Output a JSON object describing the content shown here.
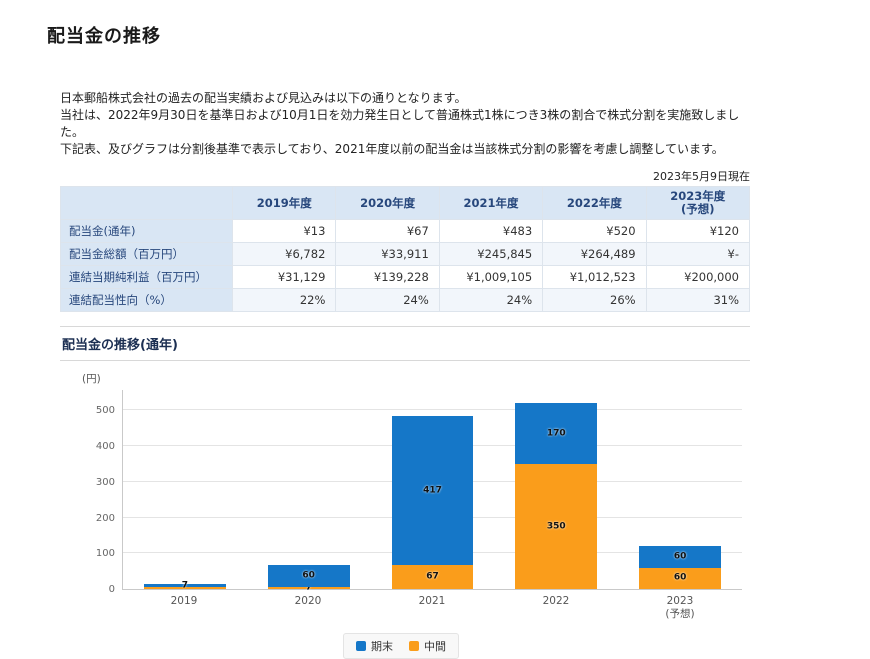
{
  "page": {
    "title": "配当金の推移",
    "intro_lines": [
      "日本郵船株式会社の過去の配当実績および見込みは以下の通りとなります。",
      "当社は、2022年9月30日を基準日および10月1日を効力発生日として普通株式1株につき3株の割合で株式分割を実施致しました。",
      "下記表、及びグラフは分割後基準で表示しており、2021年度以前の配当金は当該株式分割の影響を考慮し調整しています。"
    ],
    "as_of": "2023年5月9日現在"
  },
  "table": {
    "columns": [
      "",
      "2019年度",
      "2020年度",
      "2021年度",
      "2022年度",
      "2023年度\n(予想)"
    ],
    "rows": [
      {
        "label": "配当金(通年)",
        "values": [
          "¥13",
          "¥67",
          "¥483",
          "¥520",
          "¥120"
        ]
      },
      {
        "label": "配当金総額（百万円）",
        "values": [
          "¥6,782",
          "¥33,911",
          "¥245,845",
          "¥264,489",
          "¥-"
        ]
      },
      {
        "label": "連結当期純利益（百万円）",
        "values": [
          "¥31,129",
          "¥139,228",
          "¥1,009,105",
          "¥1,012,523",
          "¥200,000"
        ]
      },
      {
        "label": "連結配当性向（%）",
        "values": [
          "22%",
          "24%",
          "24%",
          "26%",
          "31%"
        ]
      }
    ]
  },
  "chart_section_title": "配当金の推移(通年)",
  "chart_data": {
    "type": "bar",
    "stacked": true,
    "title": "配当金の推移(通年)",
    "unit_label": "(円)",
    "xlabel": "",
    "ylabel": "(円)",
    "categories": [
      "2019",
      "2020",
      "2021",
      "2022",
      "2023\n(予想)"
    ],
    "series": [
      {
        "name": "中間",
        "key": "interim",
        "color": "#fa9d1b",
        "values": [
          6,
          7,
          67,
          350,
          60
        ],
        "labels": [
          "",
          "7",
          "67",
          "350",
          "60"
        ]
      },
      {
        "name": "期末",
        "key": "year-end",
        "color": "#1577c8",
        "values": [
          7,
          60,
          417,
          170,
          60
        ],
        "labels": [
          "7",
          "60",
          "417",
          "170",
          "60"
        ]
      }
    ],
    "ylim": [
      0,
      560
    ],
    "yticks": [
      0,
      100,
      200,
      300,
      400,
      500
    ],
    "grid": true,
    "legend": [
      "期末",
      "中間"
    ],
    "legend_position": "bottom"
  }
}
